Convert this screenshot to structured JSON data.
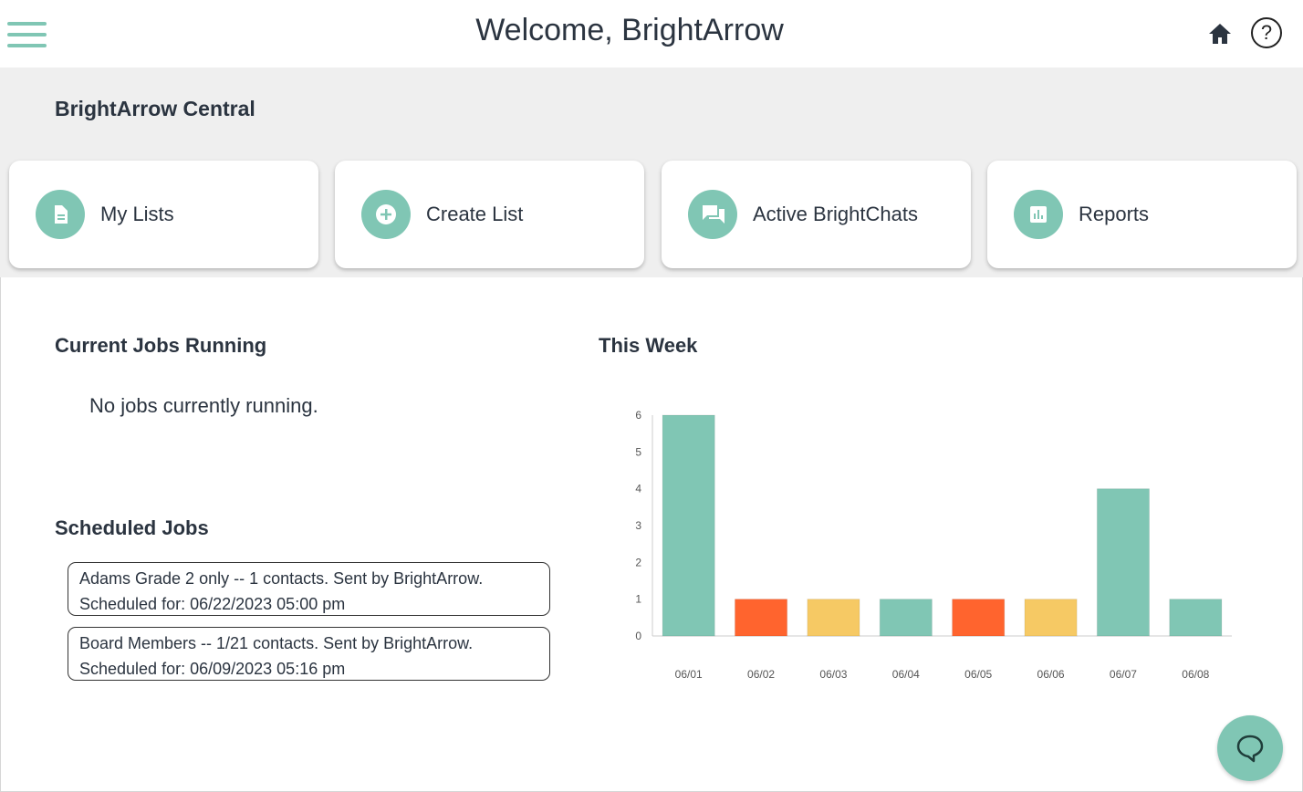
{
  "header": {
    "title": "Welcome, BrightArrow",
    "menu_icon": "hamburger-menu-icon",
    "home_icon": "home-icon",
    "help_icon": "help-icon",
    "help_glyph": "?"
  },
  "central": {
    "title": "BrightArrow Central",
    "cards": [
      {
        "label": "My Lists",
        "icon": "document-icon"
      },
      {
        "label": "Create List",
        "icon": "plus-circle-icon"
      },
      {
        "label": "Active BrightChats",
        "icon": "chat-icon"
      },
      {
        "label": "Reports",
        "icon": "bar-chart-icon"
      }
    ]
  },
  "jobs": {
    "running_title": "Current Jobs Running",
    "running_empty": "No jobs currently running.",
    "scheduled_title": "Scheduled Jobs",
    "scheduled": [
      {
        "line1": "Adams Grade 2 only -- 1 contacts. Sent by BrightArrow.",
        "line2": "Scheduled for: 06/22/2023 05:00 pm"
      },
      {
        "line1": "Board Members -- 1/21 contacts. Sent by BrightArrow.",
        "line2": "Scheduled for: 06/09/2023 05:16 pm"
      }
    ]
  },
  "week": {
    "title": "This Week"
  },
  "colors": {
    "accent": "#80c6b4",
    "orange": "#ff642e",
    "yellow": "#f6c964"
  },
  "chart_data": {
    "type": "bar",
    "categories": [
      "06/01",
      "06/02",
      "06/03",
      "06/04",
      "06/05",
      "06/06",
      "06/07",
      "06/08"
    ],
    "values": [
      6,
      1,
      1,
      1,
      1,
      1,
      4,
      1
    ],
    "bar_colors": [
      "#80c6b4",
      "#ff642e",
      "#f6c964",
      "#80c6b4",
      "#ff642e",
      "#f6c964",
      "#80c6b4",
      "#80c6b4"
    ],
    "yticks": [
      0,
      1,
      2,
      3,
      4,
      5,
      6
    ],
    "ylim": [
      0,
      6
    ],
    "grid": false,
    "legend": "none"
  },
  "chat_widget_icon": "chat-bubble-icon"
}
